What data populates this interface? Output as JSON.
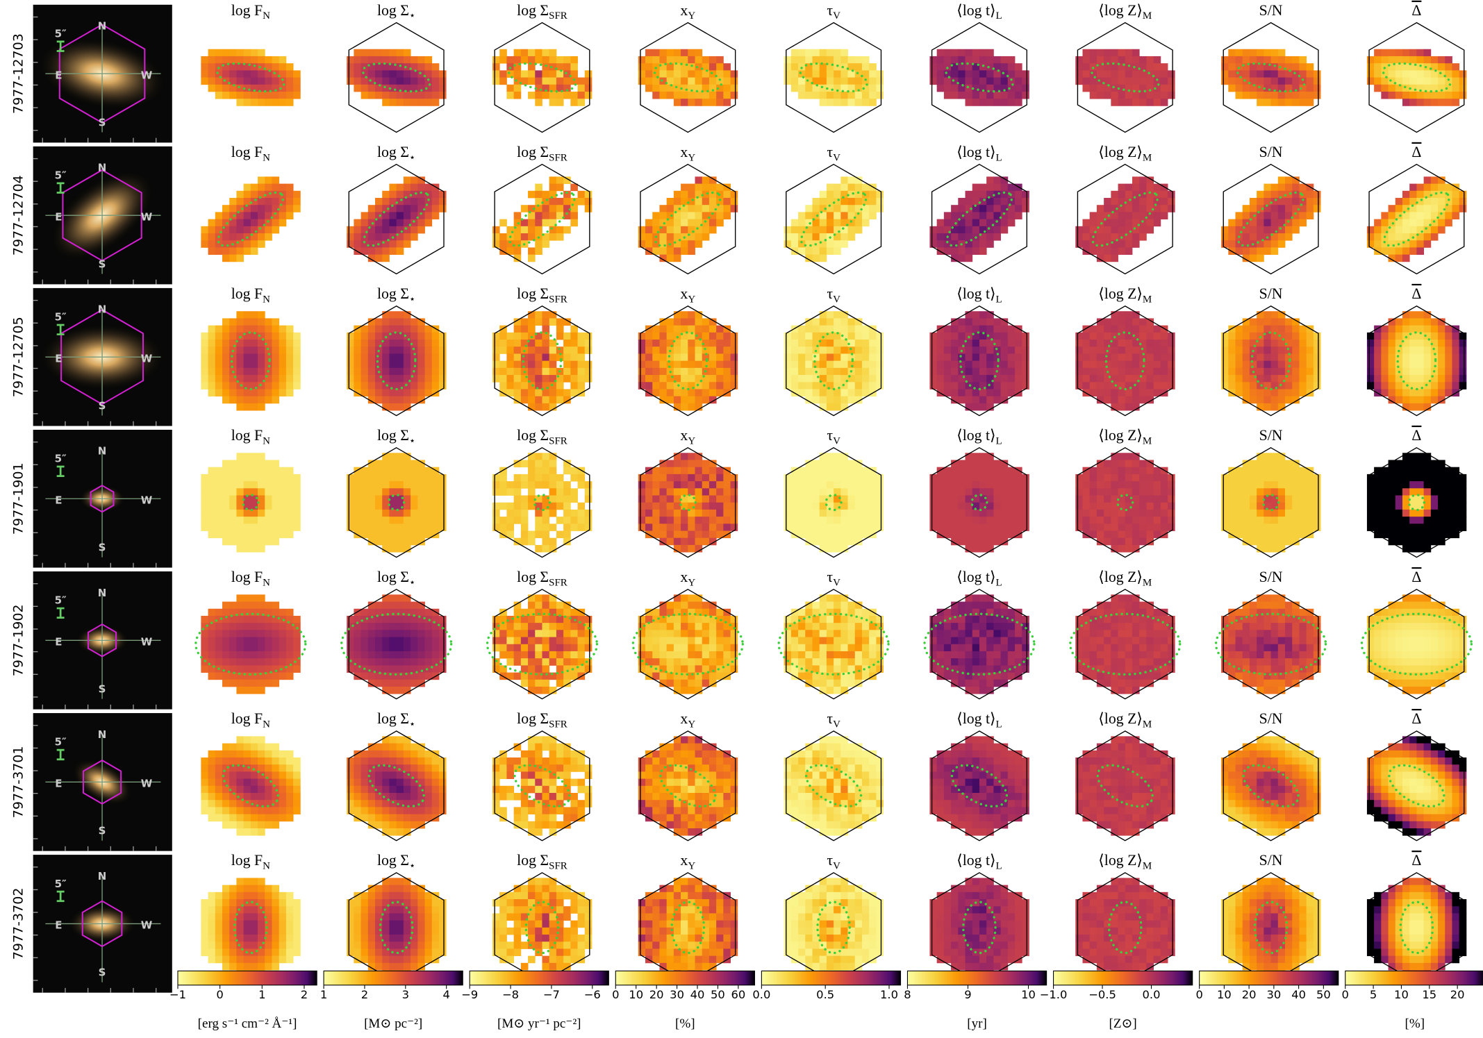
{
  "rows": [
    {
      "label": "7977-12703"
    },
    {
      "label": "7977-12704"
    },
    {
      "label": "7977-12705"
    },
    {
      "label": "7977-1901"
    },
    {
      "label": "7977-1902"
    },
    {
      "label": "7977-3701"
    },
    {
      "label": "7977-3702"
    }
  ],
  "thumbnail": {
    "north": "N",
    "south": "S",
    "east": "E",
    "west": "W",
    "scale": "5″"
  },
  "columns": [
    {
      "title": {
        "text": "log F",
        "sub": "N"
      },
      "colorbar": {
        "lim": [
          -1,
          2.3
        ],
        "ticks": [
          {
            "value": -1,
            "label": "−1"
          },
          0,
          1,
          2
        ],
        "unit": "[erg s⁻¹ cm⁻² Å⁻¹]"
      }
    },
    {
      "title": {
        "text": "log Σ",
        "sub": "⋆"
      },
      "colorbar": {
        "lim": [
          1,
          4.4
        ],
        "ticks": [
          1,
          2,
          3,
          4
        ],
        "unit": "[M⊙ pc⁻²]"
      }
    },
    {
      "title": {
        "text": "log Σ",
        "sub": "SFR"
      },
      "colorbar": {
        "lim": [
          -9,
          -5.6
        ],
        "ticks": [
          {
            "value": -9,
            "label": "−9"
          },
          {
            "value": -8,
            "label": "−8"
          },
          {
            "value": -7,
            "label": "−7"
          },
          {
            "value": -6,
            "label": "−6"
          }
        ],
        "unit": "[M⊙ yr⁻¹ pc⁻²]"
      }
    },
    {
      "title": {
        "text": "x",
        "sub": "Y"
      },
      "colorbar": {
        "lim": [
          0,
          68
        ],
        "ticks": [
          0,
          10,
          20,
          30,
          40,
          50,
          60
        ],
        "unit": "[%]"
      }
    },
    {
      "title": {
        "text": "τ",
        "sub": "V"
      },
      "colorbar": {
        "lim": [
          0,
          1.09
        ],
        "ticks": [
          {
            "value": 0,
            "label": "0.0"
          },
          0.5,
          {
            "value": 1,
            "label": "1.0"
          }
        ]
      }
    },
    {
      "title": {
        "text": "⟨log t⟩",
        "sub": "L"
      },
      "colorbar": {
        "lim": [
          8,
          10.3
        ],
        "ticks": [
          8,
          9,
          10
        ],
        "unit": "[yr]"
      }
    },
    {
      "title": {
        "text": "⟨log Z⟩",
        "sub": "M"
      },
      "colorbar": {
        "lim": [
          -1,
          0.42
        ],
        "ticks": [
          {
            "value": -1,
            "label": "−1.0"
          },
          {
            "value": -0.5,
            "label": "−0.5"
          },
          {
            "value": 0,
            "label": "0.0"
          }
        ],
        "unit": "[Z⊙]"
      }
    },
    {
      "title": {
        "text": "S/N"
      },
      "colorbar": {
        "lim": [
          0,
          56
        ],
        "ticks": [
          0,
          10,
          20,
          30,
          40,
          50
        ]
      }
    },
    {
      "title": {
        "text": "Δ",
        "overline": true
      },
      "colorbar": {
        "lim": [
          0,
          24.8
        ],
        "ticks": [
          0,
          5,
          10,
          15,
          20
        ],
        "unit": "[%]"
      }
    }
  ]
}
